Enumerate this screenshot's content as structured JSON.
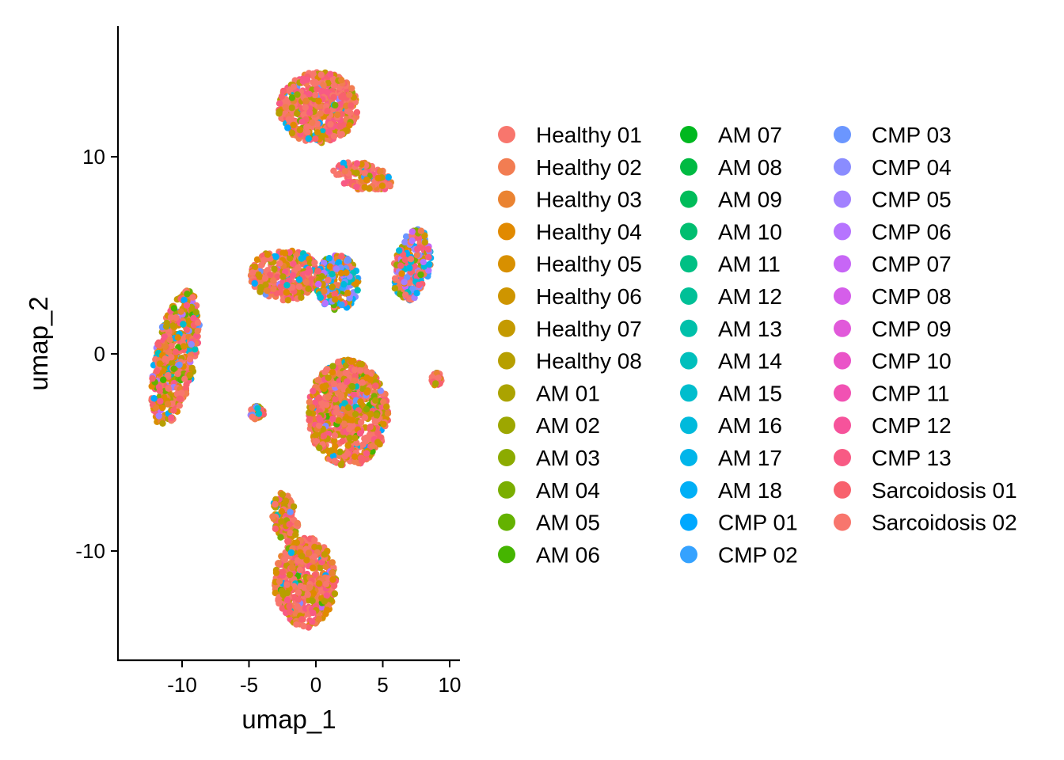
{
  "chart_data": {
    "type": "scatter",
    "title": "",
    "xlabel": "umap_1",
    "ylabel": "umap_2",
    "xlim": [
      -15,
      10.8
    ],
    "ylim": [
      -15.5,
      16.5
    ],
    "xticks": [
      -10,
      -5,
      0,
      5,
      10
    ],
    "xtick_labels": [
      "-10",
      "-5",
      "0",
      "5",
      "10"
    ],
    "yticks": [
      -10,
      0,
      10
    ],
    "ytick_labels": [
      "-10",
      "0",
      "10"
    ],
    "grid": false,
    "legend_position": "right",
    "legend_columns": 3,
    "series": [
      {
        "name": "Healthy 01",
        "color": "#F8766D"
      },
      {
        "name": "Healthy 02",
        "color": "#F27D52"
      },
      {
        "name": "Healthy 03",
        "color": "#EA8331"
      },
      {
        "name": "Healthy 04",
        "color": "#E18A00"
      },
      {
        "name": "Healthy 05",
        "color": "#D89000"
      },
      {
        "name": "Healthy 06",
        "color": "#CE9500"
      },
      {
        "name": "Healthy 07",
        "color": "#C49A00"
      },
      {
        "name": "Healthy 08",
        "color": "#B79F00"
      },
      {
        "name": "AM 01",
        "color": "#ABA300"
      },
      {
        "name": "AM 02",
        "color": "#9DA700"
      },
      {
        "name": "AM 03",
        "color": "#8CAB00"
      },
      {
        "name": "AM 04",
        "color": "#7AAE00"
      },
      {
        "name": "AM 05",
        "color": "#64B200"
      },
      {
        "name": "AM 06",
        "color": "#45B500"
      },
      {
        "name": "AM 07",
        "color": "#00B81F"
      },
      {
        "name": "AM 08",
        "color": "#00BA42"
      },
      {
        "name": "AM 09",
        "color": "#00BC5A"
      },
      {
        "name": "AM 10",
        "color": "#00BE70"
      },
      {
        "name": "AM 11",
        "color": "#00C084"
      },
      {
        "name": "AM 12",
        "color": "#00C097"
      },
      {
        "name": "AM 13",
        "color": "#00C0AA"
      },
      {
        "name": "AM 14",
        "color": "#00BFBC"
      },
      {
        "name": "AM 15",
        "color": "#00BDCD"
      },
      {
        "name": "AM 16",
        "color": "#00BADC"
      },
      {
        "name": "AM 17",
        "color": "#00B5EA"
      },
      {
        "name": "AM 18",
        "color": "#00AFF6"
      },
      {
        "name": "CMP 01",
        "color": "#00A8FF"
      },
      {
        "name": "CMP 02",
        "color": "#35A2FF"
      },
      {
        "name": "CMP 03",
        "color": "#6B96FF"
      },
      {
        "name": "CMP 04",
        "color": "#8A8CFF"
      },
      {
        "name": "CMP 05",
        "color": "#A281FF"
      },
      {
        "name": "CMP 06",
        "color": "#B674FF"
      },
      {
        "name": "CMP 07",
        "color": "#C766F6"
      },
      {
        "name": "CMP 08",
        "color": "#D55EEA"
      },
      {
        "name": "CMP 09",
        "color": "#E159DA"
      },
      {
        "name": "CMP 10",
        "color": "#EA54C8"
      },
      {
        "name": "CMP 11",
        "color": "#F152B3"
      },
      {
        "name": "CMP 12",
        "color": "#F6539B"
      },
      {
        "name": "CMP 13",
        "color": "#F85A84"
      },
      {
        "name": "Sarcoidosis 01",
        "color": "#F8616D"
      },
      {
        "name": "Sarcoidosis 02",
        "color": "#F8766D"
      }
    ],
    "clusters": [
      {
        "cx": -10.5,
        "cy": -0.2,
        "rx": 1.5,
        "ry": 3.6,
        "rot": -18,
        "mix": [
          0.45,
          0.35,
          0.12,
          0.08
        ]
      },
      {
        "cx": 0.2,
        "cy": 12.5,
        "rx": 3.0,
        "ry": 1.8,
        "rot": 0,
        "mix": [
          0.7,
          0.22,
          0.05,
          0.03
        ]
      },
      {
        "cx": 3.5,
        "cy": 9.0,
        "rx": 2.2,
        "ry": 0.7,
        "rot": -8,
        "mix": [
          0.7,
          0.22,
          0.05,
          0.03
        ]
      },
      {
        "cx": -2.3,
        "cy": 4.0,
        "rx": 2.6,
        "ry": 1.3,
        "rot": 0,
        "mix": [
          0.55,
          0.35,
          0.07,
          0.03
        ]
      },
      {
        "cx": 1.6,
        "cy": 3.6,
        "rx": 1.6,
        "ry": 1.4,
        "rot": 0,
        "mix": [
          0.12,
          0.3,
          0.52,
          0.06
        ]
      },
      {
        "cx": 7.2,
        "cy": 4.5,
        "rx": 1.3,
        "ry": 1.9,
        "rot": -25,
        "mix": [
          0.4,
          0.15,
          0.4,
          0.05
        ]
      },
      {
        "cx": 2.4,
        "cy": -3.0,
        "rx": 3.0,
        "ry": 2.7,
        "rot": 0,
        "mix": [
          0.55,
          0.35,
          0.05,
          0.05
        ]
      },
      {
        "cx": -4.4,
        "cy": -3.0,
        "rx": 0.5,
        "ry": 0.35,
        "rot": 0,
        "mix": [
          0.5,
          0.3,
          0.15,
          0.05
        ]
      },
      {
        "cx": -0.8,
        "cy": -11.6,
        "rx": 2.3,
        "ry": 2.3,
        "rot": 0,
        "mix": [
          0.65,
          0.28,
          0.04,
          0.03
        ]
      },
      {
        "cx": -2.3,
        "cy": -8.3,
        "rx": 0.9,
        "ry": 1.3,
        "rot": 20,
        "mix": [
          0.55,
          0.35,
          0.05,
          0.05
        ]
      },
      {
        "cx": 9.0,
        "cy": -1.3,
        "rx": 0.4,
        "ry": 0.35,
        "rot": 0,
        "mix": [
          0.7,
          0.2,
          0.05,
          0.05
        ]
      }
    ]
  }
}
